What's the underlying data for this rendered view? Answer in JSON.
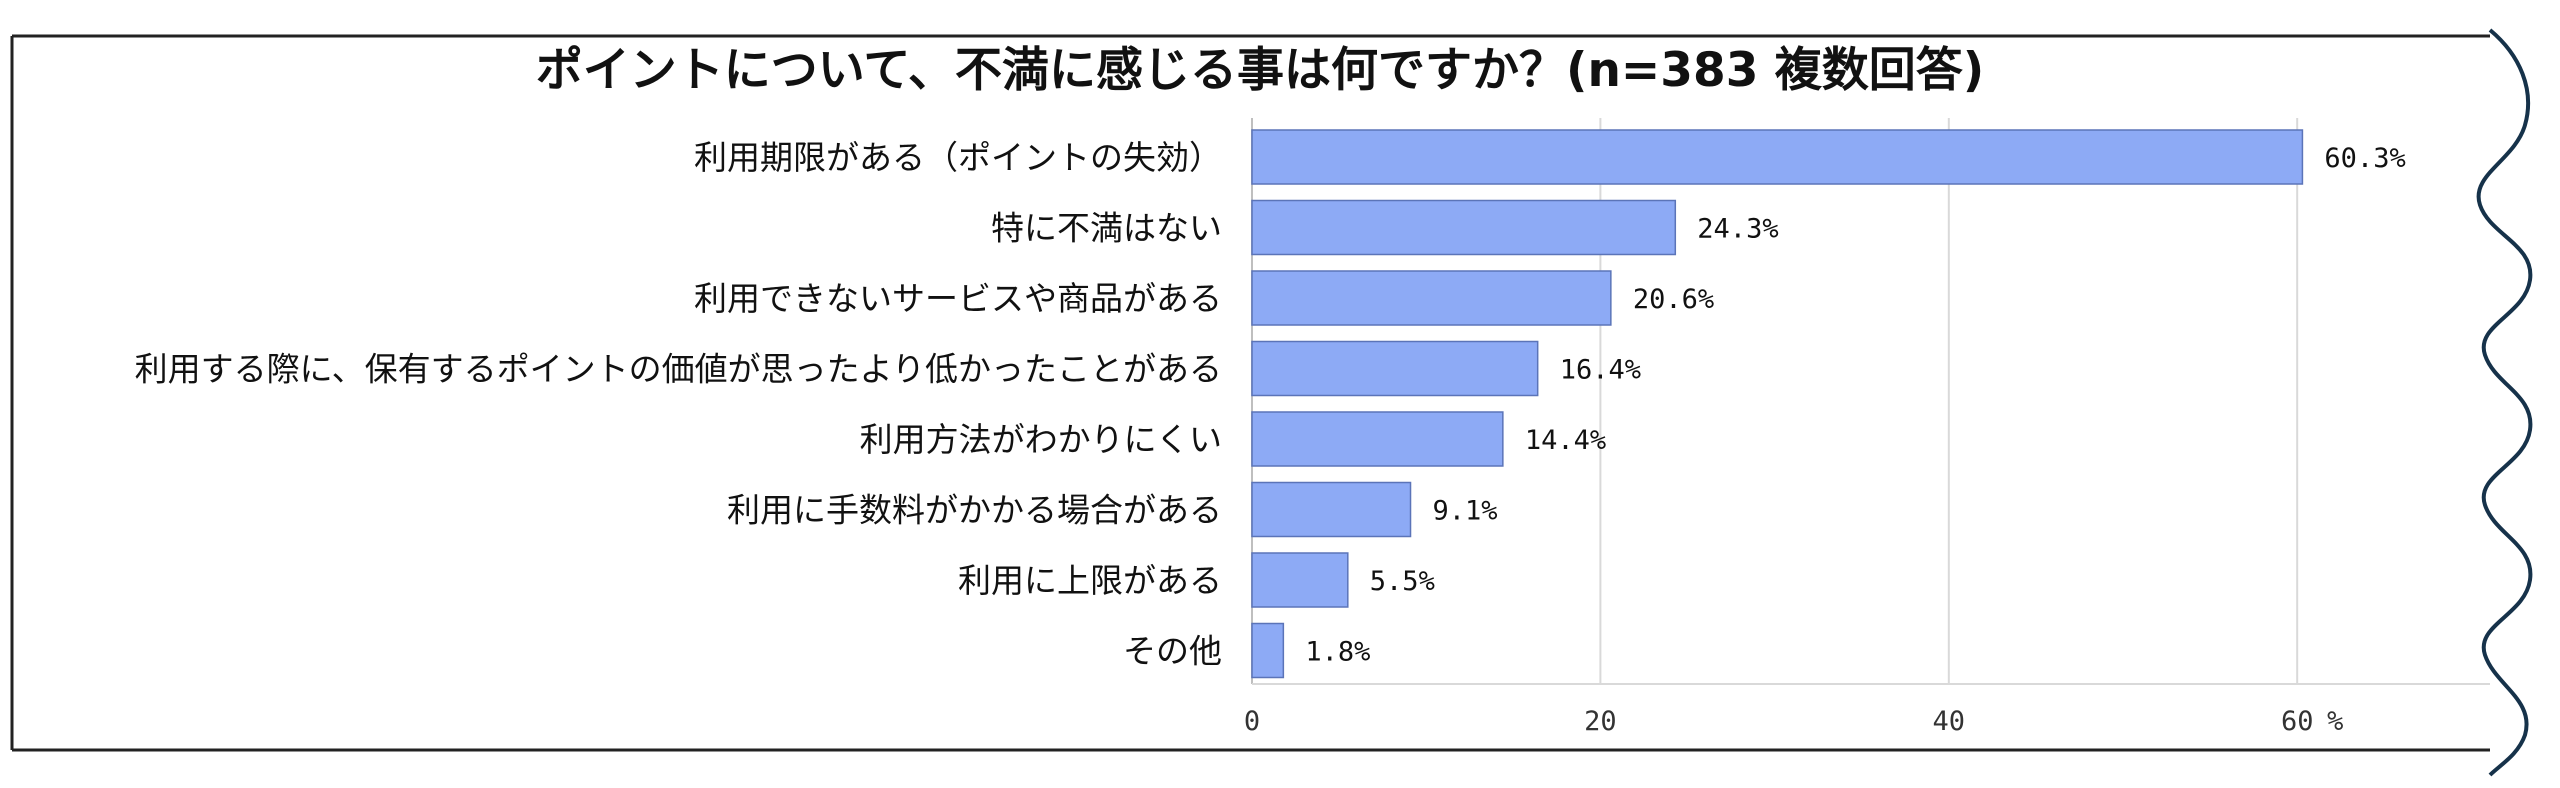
{
  "chart_data": {
    "type": "bar",
    "orientation": "horizontal",
    "title": "ポイントについて、不満に感じる事は何ですか？(n=383 複数回答)",
    "categories": [
      "利用期限がある（ポイントの失効）",
      "特に不満はない",
      "利用できないサービスや商品がある",
      "利用する際に、保有するポイントの価値が思ったより低かったことがある",
      "利用方法がわかりにくい",
      "利用に手数料がかかる場合がある",
      "利用に上限がある",
      "その他"
    ],
    "values": [
      60.3,
      24.3,
      20.6,
      16.4,
      14.4,
      9.1,
      5.5,
      1.8
    ],
    "value_labels": [
      "60.3%",
      "24.3%",
      "20.6%",
      "16.4%",
      "14.4%",
      "9.1%",
      "5.5%",
      "1.8%"
    ],
    "xticks": [
      0,
      20,
      40,
      60
    ],
    "xunit": "%",
    "xlim": [
      0,
      74
    ],
    "grid": true,
    "legend": false,
    "colors": {
      "bar_fill": "#8daaf5",
      "bar_stroke": "#5b74b8"
    }
  }
}
